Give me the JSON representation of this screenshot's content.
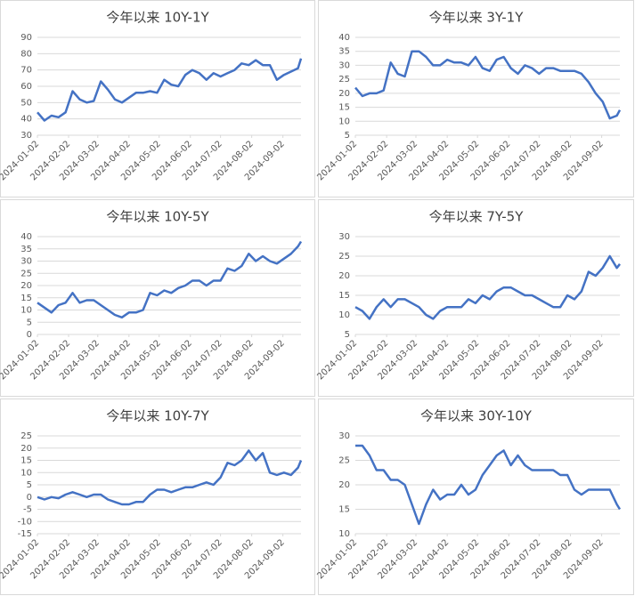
{
  "chart_data": [
    {
      "type": "line",
      "title": "今年以来 10Y-1Y",
      "color": "#4472c4",
      "grid": true,
      "x": [
        "2024-01-02",
        "2024-01-09",
        "2024-01-16",
        "2024-01-23",
        "2024-01-30",
        "2024-02-06",
        "2024-02-13",
        "2024-02-20",
        "2024-02-27",
        "2024-03-05",
        "2024-03-12",
        "2024-03-19",
        "2024-03-26",
        "2024-04-02",
        "2024-04-09",
        "2024-04-16",
        "2024-04-23",
        "2024-04-30",
        "2024-05-07",
        "2024-05-14",
        "2024-05-21",
        "2024-05-28",
        "2024-06-04",
        "2024-06-11",
        "2024-06-18",
        "2024-06-25",
        "2024-07-02",
        "2024-07-09",
        "2024-07-16",
        "2024-07-23",
        "2024-07-30",
        "2024-08-06",
        "2024-08-13",
        "2024-08-20",
        "2024-08-27",
        "2024-09-03",
        "2024-09-10",
        "2024-09-17",
        "2024-09-20"
      ],
      "values": [
        44,
        39,
        42,
        41,
        44,
        57,
        52,
        50,
        51,
        63,
        58,
        52,
        50,
        53,
        56,
        56,
        57,
        56,
        64,
        61,
        60,
        67,
        70,
        68,
        64,
        68,
        66,
        68,
        70,
        74,
        73,
        76,
        73,
        73,
        64,
        67,
        69,
        71,
        77
      ],
      "xlim": [
        "2024-01-02",
        "2024-09-20"
      ],
      "xticks": [
        "2024-01-02",
        "2024-02-02",
        "2024-03-02",
        "2024-04-02",
        "2024-05-02",
        "2024-06-02",
        "2024-07-02",
        "2024-08-02",
        "2024-09-02"
      ],
      "ylim": [
        30,
        90
      ],
      "yticks": [
        30,
        40,
        50,
        60,
        70,
        80,
        90
      ]
    },
    {
      "type": "line",
      "title": "今年以来 3Y-1Y",
      "color": "#4472c4",
      "grid": true,
      "x": [
        "2024-01-02",
        "2024-01-09",
        "2024-01-16",
        "2024-01-23",
        "2024-01-30",
        "2024-02-06",
        "2024-02-13",
        "2024-02-20",
        "2024-02-27",
        "2024-03-05",
        "2024-03-12",
        "2024-03-19",
        "2024-03-26",
        "2024-04-02",
        "2024-04-09",
        "2024-04-16",
        "2024-04-23",
        "2024-04-30",
        "2024-05-07",
        "2024-05-14",
        "2024-05-21",
        "2024-05-28",
        "2024-06-04",
        "2024-06-11",
        "2024-06-18",
        "2024-06-25",
        "2024-07-02",
        "2024-07-09",
        "2024-07-16",
        "2024-07-23",
        "2024-07-30",
        "2024-08-06",
        "2024-08-13",
        "2024-08-20",
        "2024-08-27",
        "2024-09-03",
        "2024-09-10",
        "2024-09-17",
        "2024-09-20"
      ],
      "values": [
        22,
        19,
        20,
        20,
        21,
        31,
        27,
        26,
        35,
        35,
        33,
        30,
        30,
        32,
        31,
        31,
        30,
        33,
        29,
        28,
        32,
        33,
        29,
        27,
        30,
        29,
        27,
        29,
        29,
        28,
        28,
        28,
        27,
        24,
        20,
        17,
        11,
        12,
        14
      ],
      "xlim": [
        "2024-01-02",
        "2024-09-20"
      ],
      "xticks": [
        "2024-01-02",
        "2024-02-02",
        "2024-03-02",
        "2024-04-02",
        "2024-05-02",
        "2024-06-02",
        "2024-07-02",
        "2024-08-02",
        "2024-09-02"
      ],
      "ylim": [
        5,
        40
      ],
      "yticks": [
        5,
        10,
        15,
        20,
        25,
        30,
        35,
        40
      ]
    },
    {
      "type": "line",
      "title": "今年以来 10Y-5Y",
      "color": "#4472c4",
      "grid": true,
      "x": [
        "2024-01-02",
        "2024-01-09",
        "2024-01-16",
        "2024-01-23",
        "2024-01-30",
        "2024-02-06",
        "2024-02-13",
        "2024-02-20",
        "2024-02-27",
        "2024-03-05",
        "2024-03-12",
        "2024-03-19",
        "2024-03-26",
        "2024-04-02",
        "2024-04-09",
        "2024-04-16",
        "2024-04-23",
        "2024-04-30",
        "2024-05-07",
        "2024-05-14",
        "2024-05-21",
        "2024-05-28",
        "2024-06-04",
        "2024-06-11",
        "2024-06-18",
        "2024-06-25",
        "2024-07-02",
        "2024-07-09",
        "2024-07-16",
        "2024-07-23",
        "2024-07-30",
        "2024-08-06",
        "2024-08-13",
        "2024-08-20",
        "2024-08-27",
        "2024-09-03",
        "2024-09-10",
        "2024-09-17",
        "2024-09-20"
      ],
      "values": [
        13,
        11,
        9,
        12,
        13,
        17,
        13,
        14,
        14,
        12,
        10,
        8,
        7,
        9,
        9,
        10,
        17,
        16,
        18,
        17,
        19,
        20,
        22,
        22,
        20,
        22,
        22,
        27,
        26,
        28,
        33,
        30,
        32,
        30,
        29,
        31,
        33,
        36,
        38
      ],
      "xlim": [
        "2024-01-02",
        "2024-09-20"
      ],
      "xticks": [
        "2024-01-02",
        "2024-02-02",
        "2024-03-02",
        "2024-04-02",
        "2024-05-02",
        "2024-06-02",
        "2024-07-02",
        "2024-08-02",
        "2024-09-02"
      ],
      "ylim": [
        0,
        40
      ],
      "yticks": [
        0,
        5,
        10,
        15,
        20,
        25,
        30,
        35,
        40
      ]
    },
    {
      "type": "line",
      "title": "今年以来 7Y-5Y",
      "color": "#4472c4",
      "grid": true,
      "x": [
        "2024-01-02",
        "2024-01-09",
        "2024-01-16",
        "2024-01-23",
        "2024-01-30",
        "2024-02-06",
        "2024-02-13",
        "2024-02-20",
        "2024-02-27",
        "2024-03-05",
        "2024-03-12",
        "2024-03-19",
        "2024-03-26",
        "2024-04-02",
        "2024-04-09",
        "2024-04-16",
        "2024-04-23",
        "2024-04-30",
        "2024-05-07",
        "2024-05-14",
        "2024-05-21",
        "2024-05-28",
        "2024-06-04",
        "2024-06-11",
        "2024-06-18",
        "2024-06-25",
        "2024-07-02",
        "2024-07-09",
        "2024-07-16",
        "2024-07-23",
        "2024-07-30",
        "2024-08-06",
        "2024-08-13",
        "2024-08-20",
        "2024-08-27",
        "2024-09-03",
        "2024-09-10",
        "2024-09-17",
        "2024-09-20"
      ],
      "values": [
        12,
        11,
        9,
        12,
        14,
        12,
        14,
        14,
        13,
        12,
        10,
        9,
        11,
        12,
        12,
        12,
        14,
        13,
        15,
        14,
        16,
        17,
        17,
        16,
        15,
        15,
        14,
        13,
        12,
        12,
        15,
        14,
        16,
        21,
        20,
        22,
        25,
        22,
        23
      ],
      "xlim": [
        "2024-01-02",
        "2024-09-20"
      ],
      "xticks": [
        "2024-01-02",
        "2024-02-02",
        "2024-03-02",
        "2024-04-02",
        "2024-05-02",
        "2024-06-02",
        "2024-07-02",
        "2024-08-02",
        "2024-09-02"
      ],
      "ylim": [
        5,
        30
      ],
      "yticks": [
        5,
        10,
        15,
        20,
        25,
        30
      ]
    },
    {
      "type": "line",
      "title": "今年以来 10Y-7Y",
      "color": "#4472c4",
      "grid": true,
      "x": [
        "2024-01-02",
        "2024-01-09",
        "2024-01-16",
        "2024-01-23",
        "2024-01-30",
        "2024-02-06",
        "2024-02-13",
        "2024-02-20",
        "2024-02-27",
        "2024-03-05",
        "2024-03-12",
        "2024-03-19",
        "2024-03-26",
        "2024-04-02",
        "2024-04-09",
        "2024-04-16",
        "2024-04-23",
        "2024-04-30",
        "2024-05-07",
        "2024-05-14",
        "2024-05-21",
        "2024-05-28",
        "2024-06-04",
        "2024-06-11",
        "2024-06-18",
        "2024-06-25",
        "2024-07-02",
        "2024-07-09",
        "2024-07-16",
        "2024-07-23",
        "2024-07-30",
        "2024-08-06",
        "2024-08-13",
        "2024-08-20",
        "2024-08-27",
        "2024-09-03",
        "2024-09-10",
        "2024-09-17",
        "2024-09-20"
      ],
      "values": [
        0,
        -1,
        0,
        -0.5,
        1,
        2,
        1,
        0,
        1,
        1,
        -1,
        -2,
        -3,
        -3,
        -2,
        -2,
        1,
        3,
        3,
        2,
        3,
        4,
        4,
        5,
        6,
        5,
        8,
        14,
        13,
        15,
        19,
        15,
        18,
        10,
        9,
        10,
        9,
        12,
        15
      ],
      "xlim": [
        "2024-01-02",
        "2024-09-20"
      ],
      "xticks": [
        "2024-01-02",
        "2024-02-02",
        "2024-03-02",
        "2024-04-02",
        "2024-05-02",
        "2024-06-02",
        "2024-07-02",
        "2024-08-02",
        "2024-09-02"
      ],
      "ylim": [
        -15,
        25
      ],
      "yticks": [
        -15,
        -10,
        -5,
        0,
        5,
        10,
        15,
        20,
        25
      ]
    },
    {
      "type": "line",
      "title": "今年以来 30Y-10Y",
      "color": "#4472c4",
      "grid": true,
      "x": [
        "2024-01-02",
        "2024-01-09",
        "2024-01-16",
        "2024-01-23",
        "2024-01-30",
        "2024-02-06",
        "2024-02-13",
        "2024-02-20",
        "2024-02-27",
        "2024-03-05",
        "2024-03-12",
        "2024-03-19",
        "2024-03-26",
        "2024-04-02",
        "2024-04-09",
        "2024-04-16",
        "2024-04-23",
        "2024-04-30",
        "2024-05-07",
        "2024-05-14",
        "2024-05-21",
        "2024-05-28",
        "2024-06-04",
        "2024-06-11",
        "2024-06-18",
        "2024-06-25",
        "2024-07-02",
        "2024-07-09",
        "2024-07-16",
        "2024-07-23",
        "2024-07-30",
        "2024-08-06",
        "2024-08-13",
        "2024-08-20",
        "2024-08-27",
        "2024-09-03",
        "2024-09-10",
        "2024-09-17",
        "2024-09-20"
      ],
      "values": [
        28,
        28,
        26,
        23,
        23,
        21,
        21,
        20,
        16,
        12,
        16,
        19,
        17,
        18,
        18,
        20,
        18,
        19,
        22,
        24,
        26,
        27,
        24,
        26,
        24,
        23,
        23,
        23,
        23,
        22,
        22,
        19,
        18,
        19,
        19,
        19,
        19,
        16,
        15
      ],
      "xlim": [
        "2024-01-02",
        "2024-09-20"
      ],
      "xticks": [
        "2024-01-02",
        "2024-02-02",
        "2024-03-02",
        "2024-04-02",
        "2024-05-02",
        "2024-06-02",
        "2024-07-02",
        "2024-08-02",
        "2024-09-02"
      ],
      "ylim": [
        10,
        30
      ],
      "yticks": [
        10,
        15,
        20,
        25,
        30
      ]
    }
  ]
}
